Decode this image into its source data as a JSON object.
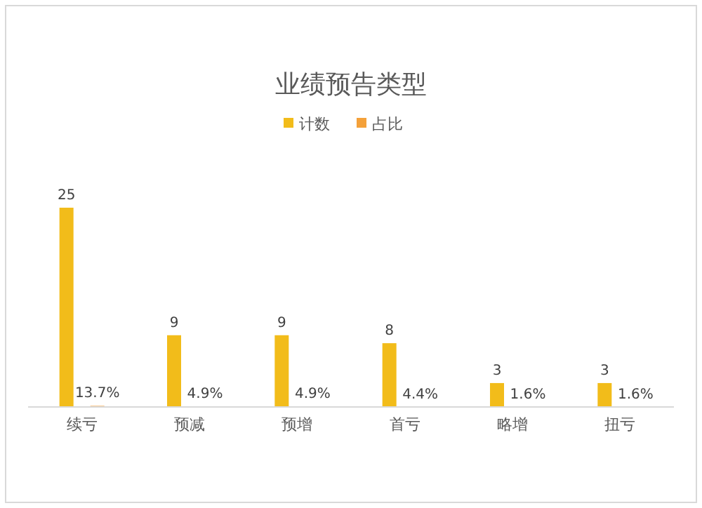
{
  "chart_data": {
    "type": "bar",
    "title": "业绩预告类型",
    "categories": [
      "续亏",
      "预减",
      "预增",
      "首亏",
      "略增",
      "扭亏"
    ],
    "series": [
      {
        "name": "计数",
        "color": "#f2bc1a",
        "values": [
          25,
          9,
          9,
          8,
          3,
          3
        ]
      },
      {
        "name": "占比",
        "color": "#f4a13a",
        "values": [
          0.137,
          0.049,
          0.049,
          0.044,
          0.016,
          0.016
        ],
        "value_labels": [
          "13.7%",
          "4.9%",
          "4.9%",
          "4.4%",
          "1.6%",
          "1.6%"
        ]
      }
    ],
    "data_labels": true,
    "legend": "top"
  }
}
